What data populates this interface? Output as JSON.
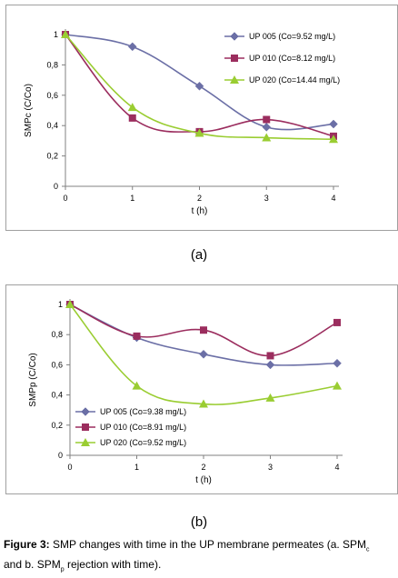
{
  "chart_data": [
    {
      "type": "line",
      "panel_label": "(a)",
      "xlabel": "t (h)",
      "ylabel": "SMPc (C/Co)",
      "x": [
        0,
        1,
        2,
        3,
        4
      ],
      "x_ticks": [
        "0",
        "1",
        "2",
        "3",
        "4"
      ],
      "y_ticks": [
        "0",
        "0,2",
        "0,4",
        "0,6",
        "0,8",
        "1"
      ],
      "ylim": [
        0,
        1
      ],
      "xlim": [
        0,
        4
      ],
      "grid": false,
      "legend_position": "top-right",
      "series": [
        {
          "name": "UP 005 (Co=9.52 mg/L)",
          "values": [
            1.0,
            0.92,
            0.66,
            0.39,
            0.41
          ],
          "color": "#6b6fa6",
          "marker": "diamond"
        },
        {
          "name": "UP 010 (Co=8.12 mg/L)",
          "values": [
            1.0,
            0.45,
            0.36,
            0.44,
            0.33
          ],
          "color": "#9b2d5e",
          "marker": "square"
        },
        {
          "name": "UP 020 (Co=14.44 mg/L)",
          "values": [
            1.0,
            0.52,
            0.35,
            0.32,
            0.31
          ],
          "color": "#9acd32",
          "marker": "triangle"
        }
      ]
    },
    {
      "type": "line",
      "panel_label": "(b)",
      "xlabel": "t (h)",
      "ylabel": "SMPp (C/Co)",
      "x": [
        0,
        1,
        2,
        3,
        4
      ],
      "x_ticks": [
        "0",
        "1",
        "2",
        "3",
        "4"
      ],
      "y_ticks": [
        "0",
        "0,2",
        "0,4",
        "0,6",
        "0,8",
        "1"
      ],
      "ylim": [
        0,
        1
      ],
      "xlim": [
        0,
        4
      ],
      "grid": false,
      "legend_position": "bottom-left",
      "series": [
        {
          "name": "UP 005 (Co=9.38 mg/L)",
          "values": [
            1.0,
            0.78,
            0.67,
            0.6,
            0.61
          ],
          "color": "#6b6fa6",
          "marker": "diamond"
        },
        {
          "name": "UP 010 (Co=8.91 mg/L)",
          "values": [
            1.0,
            0.79,
            0.83,
            0.66,
            0.88
          ],
          "color": "#9b2d5e",
          "marker": "square"
        },
        {
          "name": "UP 020 (Co=9.52 mg/L)",
          "values": [
            1.0,
            0.46,
            0.34,
            0.38,
            0.46
          ],
          "color": "#9acd32",
          "marker": "triangle"
        }
      ]
    }
  ],
  "figure_caption": {
    "label": "Figure 3:",
    "text_1": " SMP changes with time in the UP membrane permeates (a. SPM",
    "sub_1": "c",
    "text_2": "and b. SPM",
    "sub_2": "p",
    "text_3": " rejection with time)."
  }
}
